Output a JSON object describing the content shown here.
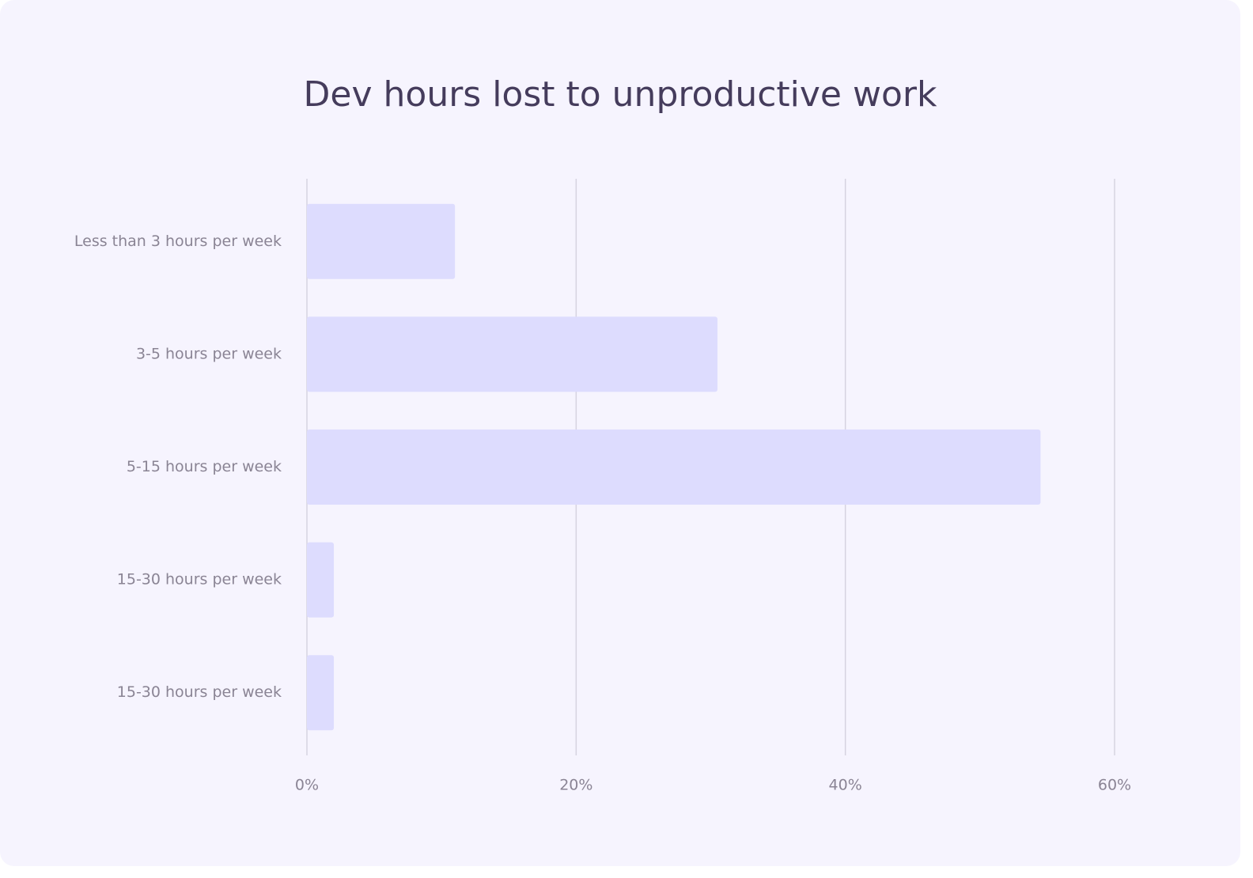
{
  "chart_data": {
    "type": "bar",
    "orientation": "horizontal",
    "title": "Dev hours lost to unproductive work",
    "categories": [
      "Less than 3 hours per week",
      "3-5 hours per week",
      "5-15 hours per week",
      "15-30 hours per week",
      "15-30 hours per week"
    ],
    "values": [
      11,
      30.5,
      54.5,
      2,
      2
    ],
    "color": "#dddcfe",
    "xlim": [
      0,
      60
    ],
    "xticks": [
      {
        "value": 0,
        "label": "0%"
      },
      {
        "value": 20,
        "label": "20%"
      },
      {
        "value": 40,
        "label": "40%"
      },
      {
        "value": 60,
        "label": "60%"
      }
    ],
    "grid": true
  }
}
